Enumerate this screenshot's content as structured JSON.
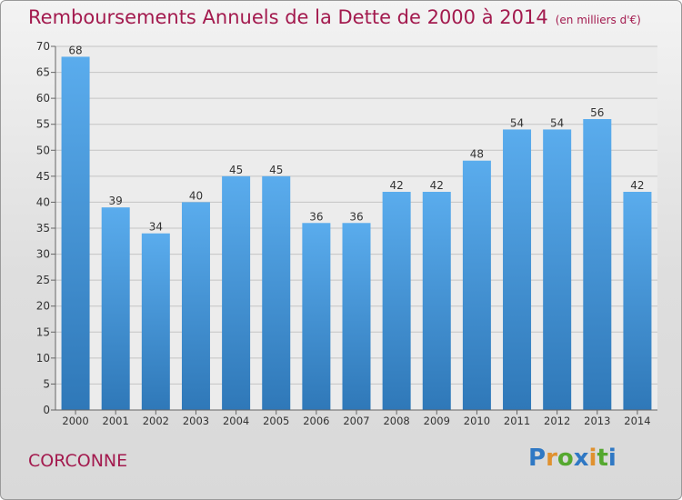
{
  "title": "Remboursements Annuels de la Dette de 2000 à 2014",
  "title_unit": "(en milliers d'€)",
  "commune": "CORCONNE",
  "logo": {
    "text": "Proxiti",
    "letters": [
      {
        "ch": "P",
        "color": "#2f78c4"
      },
      {
        "ch": "r",
        "color": "#e0912f"
      },
      {
        "ch": "o",
        "color": "#55a82f"
      },
      {
        "ch": "x",
        "color": "#2f78c4"
      },
      {
        "ch": "i",
        "color": "#e0912f"
      },
      {
        "ch": "t",
        "color": "#55a82f"
      },
      {
        "ch": "i",
        "color": "#2f78c4"
      }
    ]
  },
  "colors": {
    "accent": "#a31a4e",
    "bar_top": "#5aaced",
    "bar_bottom": "#2f78b8"
  },
  "chart_data": {
    "type": "bar",
    "title": "Remboursements Annuels de la Dette de 2000 à 2014",
    "categories": [
      "2000",
      "2001",
      "2002",
      "2003",
      "2004",
      "2005",
      "2006",
      "2007",
      "2008",
      "2009",
      "2010",
      "2011",
      "2012",
      "2013",
      "2014"
    ],
    "values": [
      68,
      39,
      34,
      40,
      45,
      45,
      36,
      36,
      42,
      42,
      48,
      54,
      54,
      56,
      42
    ],
    "ylim": [
      0,
      70
    ],
    "yticks": [
      0,
      5,
      10,
      15,
      20,
      25,
      30,
      35,
      40,
      45,
      50,
      55,
      60,
      65,
      70
    ],
    "grid": true,
    "data_labels": true
  }
}
